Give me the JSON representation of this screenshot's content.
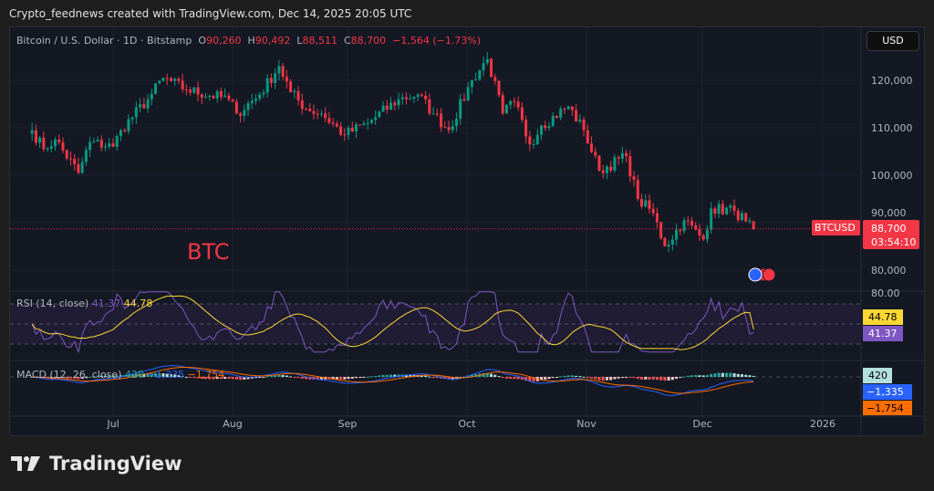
{
  "credit": "Crypto_feednews created with TradingView.com, Dec 14, 2025 20:05 UTC",
  "legend": {
    "symbol": "Bitcoin / U.S. Dollar · 1D · Bitstamp",
    "o_label": "O",
    "o": "90,260",
    "h_label": "H",
    "h": "90,492",
    "l_label": "L",
    "l": "88,511",
    "c_label": "C",
    "c": "88,700",
    "change": "−1,564 (−1.73%)"
  },
  "currency_button": "USD",
  "annotation": "BTC",
  "price_label": {
    "ticker": "BTCUSD",
    "price": "88,700",
    "countdown": "03:54:10"
  },
  "rsi": {
    "title": "RSI (14, close)",
    "rsi": "41.37",
    "ma": "44.78",
    "axis_label": "80.00"
  },
  "macd": {
    "title": "MACD (12, 26, close)",
    "hist": "420",
    "macd": "−1,335",
    "signal": "−1,754"
  },
  "logo": "TradingView",
  "colors": {
    "up": "#089981",
    "down": "#f23645",
    "rsi": "#7e57c2",
    "rsi_ma": "#fdd835",
    "macd": "#2962ff",
    "signal": "#ff6d00"
  },
  "chart_data": {
    "type": "candlestick",
    "title": "Bitcoin / U.S. Dollar · 1D · Bitstamp",
    "x_ticks": [
      "Jul",
      "Aug",
      "Sep",
      "Oct",
      "Nov",
      "Dec",
      "2026"
    ],
    "y_ticks": [
      "120,000",
      "110,000",
      "100,000",
      "90,000",
      "80,000"
    ],
    "y_values": [
      120000,
      110000,
      100000,
      90000,
      80000
    ],
    "ylim": [
      75000,
      127000
    ],
    "close_anchors": [
      [
        "2025-06-10",
        109500
      ],
      [
        "2025-06-13",
        105500
      ],
      [
        "2025-06-16",
        107500
      ],
      [
        "2025-06-22",
        100500
      ],
      [
        "2025-06-25",
        107000
      ],
      [
        "2025-07-01",
        106000
      ],
      [
        "2025-07-03",
        109500
      ],
      [
        "2025-07-10",
        116000
      ],
      [
        "2025-07-14",
        120500
      ],
      [
        "2025-07-20",
        118000
      ],
      [
        "2025-07-31",
        116000
      ],
      [
        "2025-08-02",
        113000
      ],
      [
        "2025-08-08",
        117000
      ],
      [
        "2025-08-13",
        123000
      ],
      [
        "2025-08-16",
        117500
      ],
      [
        "2025-08-20",
        114000
      ],
      [
        "2025-08-24",
        113000
      ],
      [
        "2025-08-30",
        108500
      ],
      [
        "2025-09-05",
        111000
      ],
      [
        "2025-09-13",
        116000
      ],
      [
        "2025-09-18",
        117000
      ],
      [
        "2025-09-22",
        113000
      ],
      [
        "2025-09-26",
        109500
      ],
      [
        "2025-10-02",
        120000
      ],
      [
        "2025-10-06",
        124500
      ],
      [
        "2025-10-10",
        113000
      ],
      [
        "2025-10-13",
        115500
      ],
      [
        "2025-10-17",
        106500
      ],
      [
        "2025-10-20",
        110500
      ],
      [
        "2025-10-27",
        114500
      ],
      [
        "2025-10-31",
        109500
      ],
      [
        "2025-11-04",
        101000
      ],
      [
        "2025-11-11",
        104000
      ],
      [
        "2025-11-14",
        95000
      ],
      [
        "2025-11-18",
        92000
      ],
      [
        "2025-11-21",
        85000
      ],
      [
        "2025-11-26",
        90500
      ],
      [
        "2025-12-01",
        86500
      ],
      [
        "2025-12-03",
        93000
      ],
      [
        "2025-12-09",
        92500
      ],
      [
        "2025-12-12",
        90260
      ],
      [
        "2025-12-14",
        88700
      ]
    ],
    "last": {
      "open": 90260,
      "high": 90492,
      "low": 88511,
      "close": 88700
    },
    "rsi_levels": [
      70,
      50,
      30
    ],
    "rsi_last": 41.37,
    "rsi_ma_last": 44.78,
    "macd_last": -1335,
    "signal_last": -1754,
    "hist_last": 420
  }
}
